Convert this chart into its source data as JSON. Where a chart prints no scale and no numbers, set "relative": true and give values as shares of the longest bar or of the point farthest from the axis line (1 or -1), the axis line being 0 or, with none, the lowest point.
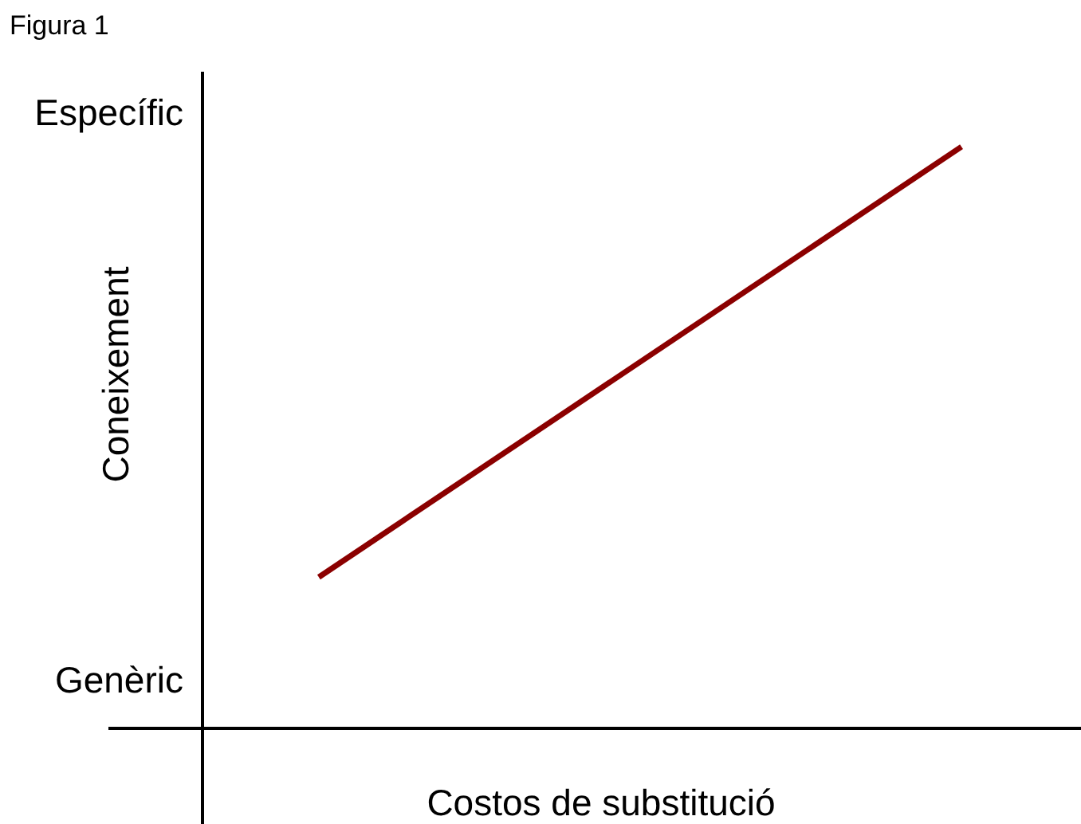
{
  "chart_data": {
    "type": "line",
    "title": "Figura 1",
    "xlabel": "Costos de substitució",
    "ylabel": "Coneixement",
    "annotations": [
      "Específic",
      "Genèric"
    ],
    "categories": [
      null,
      null
    ],
    "relative": true,
    "series": [
      {
        "color": "#8b0000",
        "values": [
          0.26,
          1
        ]
      }
    ],
    "legend": false,
    "marker": "none",
    "line_style": "solid"
  }
}
